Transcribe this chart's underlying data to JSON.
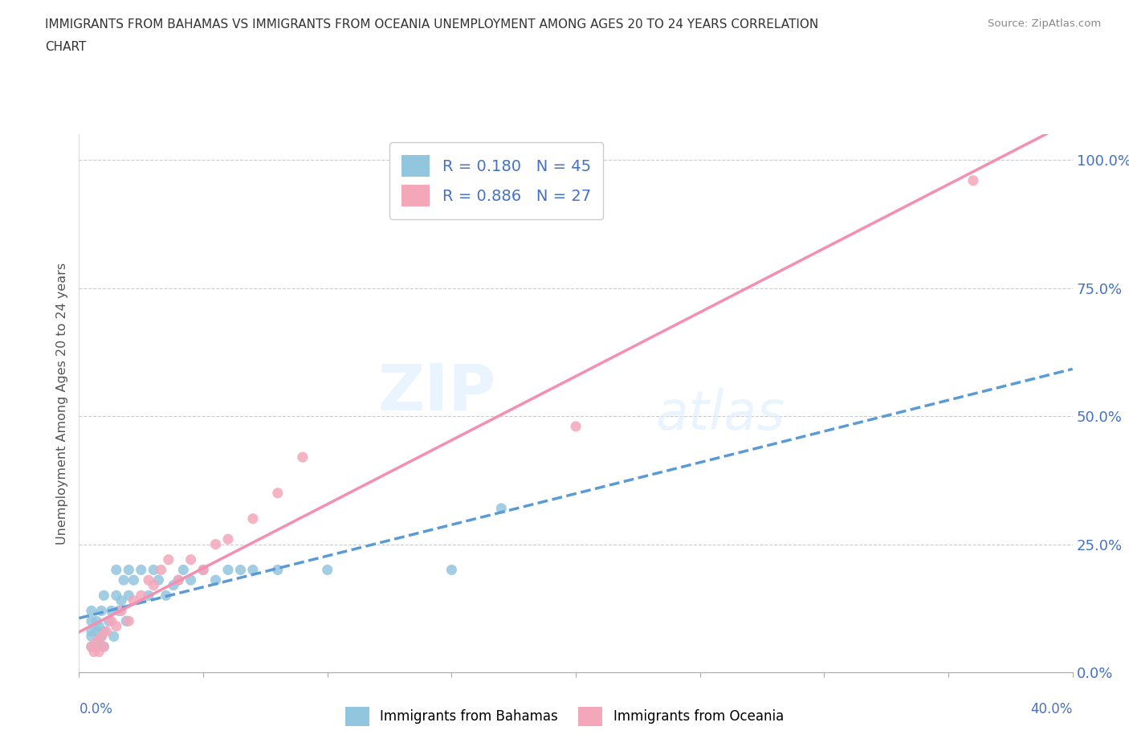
{
  "title_line1": "IMMIGRANTS FROM BAHAMAS VS IMMIGRANTS FROM OCEANIA UNEMPLOYMENT AMONG AGES 20 TO 24 YEARS CORRELATION",
  "title_line2": "CHART",
  "source_text": "Source: ZipAtlas.com",
  "xlabel_bottom_left": "0.0%",
  "xlabel_bottom_right": "40.0%",
  "ylabel": "Unemployment Among Ages 20 to 24 years",
  "xmin": 0.0,
  "xmax": 0.4,
  "ymin": 0.0,
  "ymax": 1.05,
  "yticks": [
    0.0,
    0.25,
    0.5,
    0.75,
    1.0
  ],
  "ytick_labels": [
    "0.0%",
    "25.0%",
    "50.0%",
    "75.0%",
    "100.0%"
  ],
  "watermark_zip": "ZIP",
  "watermark_atlas": "atlas",
  "legend_r1": "R = 0.180   N = 45",
  "legend_r2": "R = 0.886   N = 27",
  "color_bahamas": "#92C5DE",
  "color_oceania": "#F4A7B9",
  "color_bahamas_line": "#5B9BD5",
  "color_oceania_line": "#F48FB1",
  "color_text_blue": "#4472C4",
  "bahamas_x": [
    0.005,
    0.005,
    0.005,
    0.005,
    0.005,
    0.007,
    0.007,
    0.007,
    0.008,
    0.008,
    0.009,
    0.009,
    0.01,
    0.01,
    0.01,
    0.012,
    0.013,
    0.014,
    0.015,
    0.015,
    0.016,
    0.017,
    0.018,
    0.019,
    0.02,
    0.02,
    0.022,
    0.025,
    0.028,
    0.03,
    0.032,
    0.035,
    0.038,
    0.04,
    0.042,
    0.045,
    0.05,
    0.055,
    0.06,
    0.065,
    0.07,
    0.08,
    0.1,
    0.15,
    0.17
  ],
  "bahamas_y": [
    0.05,
    0.07,
    0.08,
    0.1,
    0.12,
    0.05,
    0.08,
    0.1,
    0.06,
    0.09,
    0.07,
    0.12,
    0.05,
    0.08,
    0.15,
    0.1,
    0.12,
    0.07,
    0.15,
    0.2,
    0.12,
    0.14,
    0.18,
    0.1,
    0.15,
    0.2,
    0.18,
    0.2,
    0.15,
    0.2,
    0.18,
    0.15,
    0.17,
    0.18,
    0.2,
    0.18,
    0.2,
    0.18,
    0.2,
    0.2,
    0.2,
    0.2,
    0.2,
    0.2,
    0.32
  ],
  "oceania_x": [
    0.005,
    0.006,
    0.007,
    0.008,
    0.009,
    0.01,
    0.011,
    0.013,
    0.015,
    0.017,
    0.02,
    0.022,
    0.025,
    0.028,
    0.03,
    0.033,
    0.036,
    0.04,
    0.045,
    0.05,
    0.055,
    0.06,
    0.07,
    0.08,
    0.09,
    0.2,
    0.36
  ],
  "oceania_y": [
    0.05,
    0.04,
    0.06,
    0.04,
    0.07,
    0.05,
    0.08,
    0.1,
    0.09,
    0.12,
    0.1,
    0.14,
    0.15,
    0.18,
    0.17,
    0.2,
    0.22,
    0.18,
    0.22,
    0.2,
    0.25,
    0.26,
    0.3,
    0.35,
    0.42,
    0.48,
    0.96
  ],
  "bahamas_legend_label": "Immigrants from Bahamas",
  "oceania_legend_label": "Immigrants from Oceania",
  "background_color": "#FFFFFF",
  "grid_color": "#CCCCCC",
  "grid_style": "--"
}
